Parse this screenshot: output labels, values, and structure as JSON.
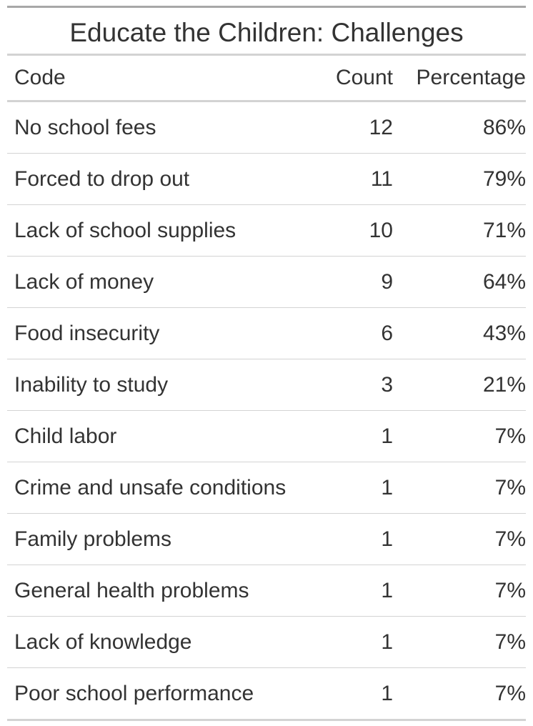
{
  "chart_data": {
    "type": "table",
    "title": "Educate the Children: Challenges",
    "columns": [
      "Code",
      "Count",
      "Percentage"
    ],
    "rows": [
      {
        "code": "No school fees",
        "count": "12",
        "percentage": "86%"
      },
      {
        "code": "Forced to drop out",
        "count": "11",
        "percentage": "79%"
      },
      {
        "code": "Lack of school supplies",
        "count": "10",
        "percentage": "71%"
      },
      {
        "code": "Lack of money",
        "count": "9",
        "percentage": "64%"
      },
      {
        "code": "Food insecurity",
        "count": "6",
        "percentage": "43%"
      },
      {
        "code": "Inability to study",
        "count": "3",
        "percentage": "21%"
      },
      {
        "code": "Child labor",
        "count": "1",
        "percentage": "7%"
      },
      {
        "code": "Crime and unsafe conditions",
        "count": "1",
        "percentage": "7%"
      },
      {
        "code": "Family problems",
        "count": "1",
        "percentage": "7%"
      },
      {
        "code": "General health problems",
        "count": "1",
        "percentage": "7%"
      },
      {
        "code": "Lack of knowledge",
        "count": "1",
        "percentage": "7%"
      },
      {
        "code": "Poor school performance",
        "count": "1",
        "percentage": "7%"
      }
    ]
  }
}
